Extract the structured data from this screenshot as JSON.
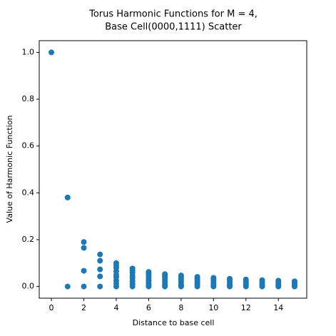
{
  "chart_data": {
    "type": "scatter",
    "title": [
      "Torus Harmonic Functions for M = 4,",
      "Base Cell(0000,1111) Scatter"
    ],
    "x_label": "Distance to base cell",
    "y_label": "Value of Harmonic Function",
    "xlim": [
      -0.75,
      15.75
    ],
    "ylim": [
      -0.05,
      1.05
    ],
    "xticks": [
      0,
      2,
      4,
      6,
      8,
      10,
      12,
      14
    ],
    "yticks": [
      {
        "value": 0,
        "label": "0.0"
      },
      {
        "value": 0.2,
        "label": "0.2"
      },
      {
        "value": 0.4,
        "label": "0.4"
      },
      {
        "value": 0.6,
        "label": "0.6"
      },
      {
        "value": 0.8,
        "label": "0.8"
      },
      {
        "value": 1,
        "label": "1.0"
      }
    ],
    "grid": false,
    "series": [
      {
        "color": "#1f77b4",
        "x": [
          0,
          1,
          1,
          2,
          2,
          2,
          2,
          3,
          3,
          3,
          3,
          3,
          4,
          4,
          4,
          4,
          4,
          4,
          4,
          4,
          4,
          5,
          5,
          5,
          5,
          5,
          5,
          5,
          5,
          6,
          6,
          6,
          6,
          6,
          6,
          6,
          6,
          7,
          7,
          7,
          7,
          7,
          7,
          7,
          8,
          8,
          8,
          8,
          8,
          8,
          8,
          9,
          9,
          9,
          9,
          9,
          9,
          10,
          10,
          10,
          10,
          10,
          10,
          11,
          11,
          11,
          11,
          11,
          11,
          12,
          12,
          12,
          12,
          12,
          13,
          13,
          13,
          13,
          13,
          14,
          14,
          14,
          14,
          14,
          15,
          15,
          15,
          15,
          15
        ],
        "y": [
          1,
          0.38,
          0,
          0.19,
          0.165,
          0.067,
          0,
          0.137,
          0.11,
          0.073,
          0.043,
          0,
          0.1,
          0.09,
          0.08,
          0.065,
          0.05,
          0.04,
          0.025,
          0.012,
          0,
          0.077,
          0.068,
          0.058,
          0.045,
          0.035,
          0.022,
          0.01,
          0,
          0.062,
          0.055,
          0.045,
          0.035,
          0.025,
          0.015,
          0.005,
          0,
          0.053,
          0.046,
          0.038,
          0.028,
          0.018,
          0.008,
          0,
          0.047,
          0.04,
          0.032,
          0.022,
          0.012,
          0.004,
          0,
          0.041,
          0.034,
          0.026,
          0.017,
          0.008,
          0,
          0.037,
          0.03,
          0.022,
          0.013,
          0.005,
          0,
          0.033,
          0.026,
          0.018,
          0.01,
          0.003,
          0,
          0.03,
          0.023,
          0.015,
          0.007,
          0,
          0.027,
          0.02,
          0.012,
          0.005,
          0,
          0.025,
          0.018,
          0.01,
          0.003,
          0,
          0.022,
          0.015,
          0.008,
          0.002,
          0
        ]
      }
    ]
  }
}
